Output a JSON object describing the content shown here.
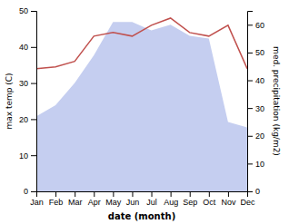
{
  "chart_data": {
    "type": "line",
    "xlabel": "date (month)",
    "ylabel": "max temp (C)",
    "y2label": "med. precipitation (kg/m2)",
    "categories": [
      "Jan",
      "Feb",
      "Mar",
      "Apr",
      "May",
      "Jun",
      "Jul",
      "Aug",
      "Sep",
      "Oct",
      "Nov",
      "Dec"
    ],
    "series": [
      {
        "type": "area",
        "axis": "y2",
        "color": "#c5cef0",
        "values": [
          27,
          31,
          39,
          49,
          61,
          61,
          58,
          60,
          56,
          55,
          25,
          23
        ]
      },
      {
        "type": "line",
        "color": "#c0504d",
        "values": [
          34,
          34.5,
          36,
          43,
          44,
          43,
          46,
          48,
          44,
          43,
          46,
          34
        ]
      }
    ],
    "ylim": [
      0,
      50
    ],
    "yticks": [
      0,
      10,
      20,
      30,
      40,
      50
    ],
    "y2lim": [
      0,
      65
    ],
    "y2ticks": [
      0,
      10,
      20,
      30,
      40,
      50,
      60
    ]
  }
}
